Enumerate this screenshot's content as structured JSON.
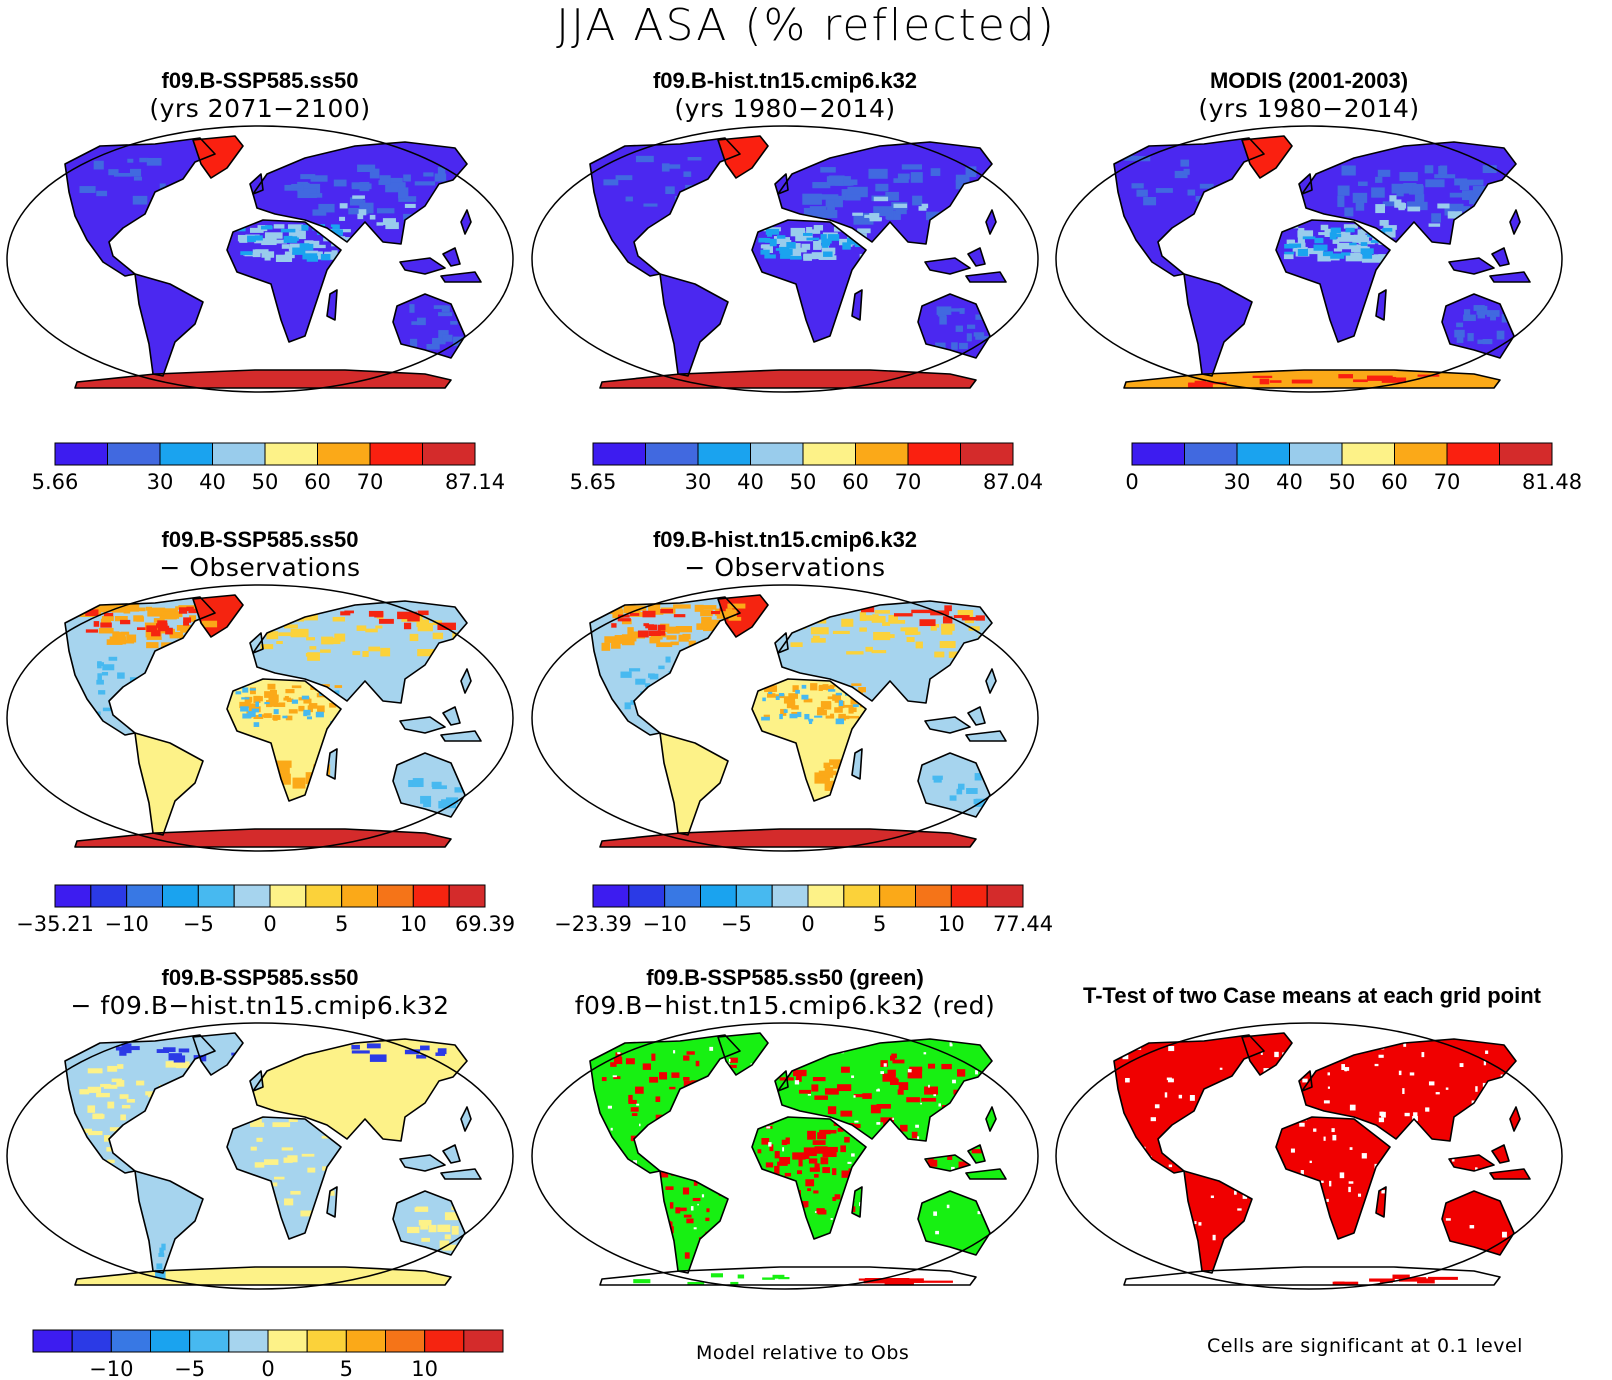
{
  "title": "JJA ASA (% reflected)",
  "colors": {
    "abs": [
      "#3d1cf0",
      "#4169e0",
      "#1aa3ef",
      "#99ccec",
      "#fdf288",
      "#fba918",
      "#fa2010",
      "#d42b2b"
    ],
    "diff": [
      "#3d1cf0",
      "#2b3ae6",
      "#3878e4",
      "#1aa3ef",
      "#47b9f0",
      "#a6d4ee",
      "#fdf288",
      "#fbd23a",
      "#fba918",
      "#f57418",
      "#f52410",
      "#d42b2b"
    ],
    "land_low": "#4b28f0",
    "ocean": "#ffffff",
    "green": "#17f012",
    "red": "#f00000"
  },
  "panels": [
    {
      "id": "p1",
      "title": "f09.B-SSP585.ss50",
      "subtitle": "(yrs 2071−2100)",
      "style": "abs_model",
      "colorbar": {
        "kind": "abs",
        "labels": [
          "5.66",
          "30",
          "40",
          "50",
          "60",
          "70",
          "87.14"
        ]
      }
    },
    {
      "id": "p2",
      "title": "f09.B-hist.tn15.cmip6.k32",
      "subtitle": "(yrs 1980−2014)",
      "style": "abs_model",
      "colorbar": {
        "kind": "abs",
        "labels": [
          "5.65",
          "30",
          "40",
          "50",
          "60",
          "70",
          "87.04"
        ]
      }
    },
    {
      "id": "p3",
      "title": "MODIS (2001-2003)",
      "subtitle": "(yrs 1980−2014)",
      "style": "abs_obs",
      "colorbar": {
        "kind": "abs",
        "labels": [
          "0",
          "30",
          "40",
          "50",
          "60",
          "70",
          "81.48"
        ]
      }
    },
    {
      "id": "p4",
      "title": "f09.B-SSP585.ss50",
      "subtitle": "− Observations",
      "style": "diff_obs",
      "colorbar": {
        "kind": "diff",
        "labels": [
          "−35.21",
          "−10",
          "−5",
          "0",
          "5",
          "10",
          "69.39"
        ]
      }
    },
    {
      "id": "p5",
      "title": "f09.B-hist.tn15.cmip6.k32",
      "subtitle": "− Observations",
      "style": "diff_obs",
      "colorbar": {
        "kind": "diff",
        "labels": [
          "−23.39",
          "−10",
          "−5",
          "0",
          "5",
          "10",
          "77.44"
        ]
      }
    },
    {
      "id": "p6",
      "title": "f09.B-SSP585.ss50",
      "subtitle": "− f09.B−hist.tn15.cmip6.k32",
      "style": "diff_case",
      "colorbar": {
        "kind": "diff",
        "labels": [
          "−10",
          "−5",
          "0",
          "5",
          "10"
        ]
      }
    },
    {
      "id": "p7",
      "title": "f09.B-SSP585.ss50 (green)",
      "subtitle": "f09.B−hist.tn15.cmip6.k32 (red)",
      "style": "green_red"
    },
    {
      "id": "p8",
      "title": "T-Test of two Case means at each grid point",
      "subtitle": "",
      "style": "ttest"
    }
  ],
  "footnotes": {
    "model_relative": "Model relative to Obs",
    "significance": "Cells are significant at 0.1 level"
  }
}
